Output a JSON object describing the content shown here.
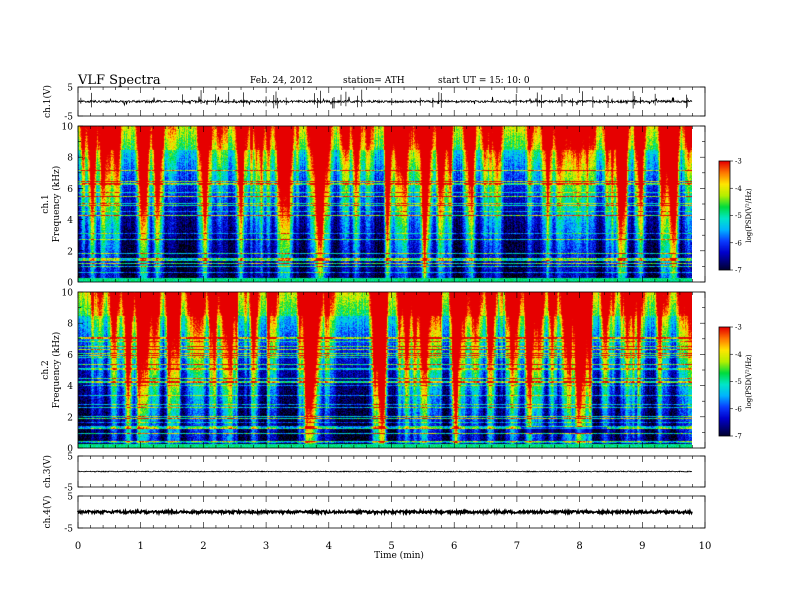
{
  "header": {
    "title": "VLF  Spectra",
    "date": "Feb. 24, 2012",
    "station": "station= ATH",
    "start": "start  UT  =    15: 10: 0"
  },
  "chart_data": [
    {
      "type": "line",
      "panel": "ch1-waveform",
      "ylabel": "ch.1(V)",
      "ylim": [
        -5,
        5
      ],
      "yticks": [
        "5",
        "-5"
      ],
      "baseline": 0,
      "color": "#000000"
    },
    {
      "type": "heatmap",
      "panel": "ch1-spectrogram",
      "ylabel": "ch.1\nFrequency (kHz)",
      "ylim": [
        0,
        10
      ],
      "yticks": [
        "0",
        "2",
        "4",
        "6",
        "8",
        "10"
      ],
      "xlim": [
        0,
        9.83
      ],
      "colorbar": {
        "label": "log(PSD(V²/Hz)",
        "range": [
          -7,
          -3
        ],
        "ticks": [
          "-3",
          "-4",
          "-5",
          "-6",
          "-7"
        ]
      }
    },
    {
      "type": "heatmap",
      "panel": "ch2-spectrogram",
      "ylabel": "ch.2\nFrequency (kHz)",
      "ylim": [
        0,
        10
      ],
      "yticks": [
        "0",
        "2",
        "4",
        "6",
        "8",
        "10"
      ],
      "xlim": [
        0,
        9.83
      ],
      "colorbar": {
        "label": "log(PSD(V²/Hz)",
        "range": [
          -7,
          -3
        ],
        "ticks": [
          "-3",
          "-4",
          "-5",
          "-6",
          "-7"
        ]
      }
    },
    {
      "type": "line",
      "panel": "ch3-waveform",
      "ylabel": "ch.3(V)",
      "ylim": [
        -5,
        5
      ],
      "yticks": [
        "5",
        "-5"
      ],
      "baseline": 0,
      "color": "#000000"
    },
    {
      "type": "line",
      "panel": "ch4-waveform",
      "ylabel": "ch.4(V)",
      "ylim": [
        -5,
        5
      ],
      "yticks": [
        "5",
        "-5"
      ],
      "baseline": 0,
      "color": "#000000"
    }
  ],
  "xaxis": {
    "label": "Time  (min)",
    "range": [
      0,
      10
    ],
    "ticks": [
      "0",
      "1",
      "2",
      "3",
      "4",
      "5",
      "6",
      "7",
      "8",
      "9",
      "10"
    ]
  },
  "colormap": [
    "#000000",
    "#000066",
    "#0000cc",
    "#0a3cff",
    "#00b4ff",
    "#00e6c8",
    "#00dc3c",
    "#b4f000",
    "#ffe600",
    "#ff7800",
    "#e60000",
    "#ffffff"
  ]
}
